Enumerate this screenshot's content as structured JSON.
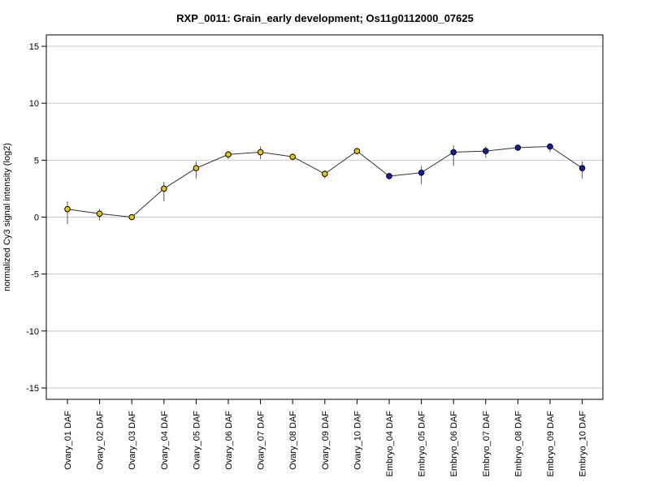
{
  "chart_data": {
    "type": "line",
    "title": "RXP_0011: Grain_early development; Os11g0112000_07625",
    "ylabel": "normalized Cy3 signal intensity (log2)",
    "xlabel": "",
    "ylim": [
      -16,
      16
    ],
    "yticks": [
      15,
      10,
      5,
      0,
      -5,
      -10,
      -15
    ],
    "ytick_labels": [
      "15",
      "10",
      "5",
      "0",
      "-5",
      "-10",
      "-15"
    ],
    "grid": "horizontal",
    "categories": [
      "Ovary_01 DAF",
      "Ovary_02 DAF",
      "Ovary_03 DAF",
      "Ovary_04 DAF",
      "Ovary_05 DAF",
      "Ovary_06 DAF",
      "Ovary_07 DAF",
      "Ovary_08 DAF",
      "Ovary_09 DAF",
      "Ovary_10 DAF",
      "Embryo_04 DAF",
      "Embryo_05 DAF",
      "Embryo_06 DAF",
      "Embryo_07 DAF",
      "Embryo_08 DAF",
      "Embryo_09 DAF",
      "Embryo_10 DAF"
    ],
    "values": [
      0.7,
      0.3,
      0.0,
      2.5,
      4.3,
      5.5,
      5.7,
      5.3,
      3.8,
      5.8,
      3.6,
      3.9,
      5.7,
      5.8,
      6.1,
      6.2,
      4.3
    ],
    "error_low": [
      -0.6,
      -0.3,
      -0.1,
      1.4,
      3.4,
      5.1,
      5.1,
      5.0,
      3.4,
      5.5,
      3.3,
      2.9,
      4.5,
      5.2,
      5.9,
      5.7,
      3.4
    ],
    "error_high": [
      1.4,
      0.7,
      0.1,
      3.1,
      4.9,
      5.8,
      6.2,
      5.5,
      4.1,
      6.0,
      3.9,
      4.5,
      6.3,
      6.2,
      6.2,
      6.5,
      4.9
    ],
    "point_colors": [
      "#e6c800",
      "#e6c800",
      "#e6c800",
      "#e6c800",
      "#e6c800",
      "#e6c800",
      "#e6c800",
      "#e6c800",
      "#e6c800",
      "#e6c800",
      "#1a1aaa",
      "#1a1aaa",
      "#1a1aaa",
      "#1a1aaa",
      "#1a1aaa",
      "#1a1aaa",
      "#1a1aaa"
    ]
  }
}
